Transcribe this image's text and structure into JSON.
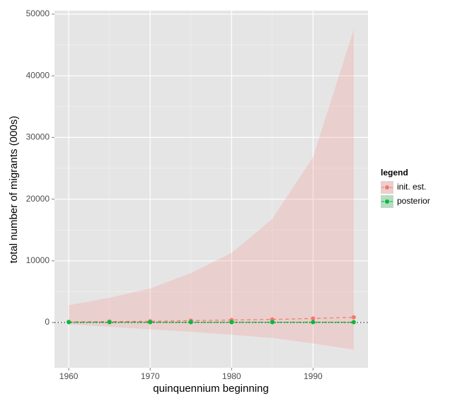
{
  "chart_data": {
    "type": "line",
    "x_label": "quinquennium beginning",
    "y_label": "total number of migrants (000s)",
    "x": [
      1960,
      1965,
      1970,
      1975,
      1980,
      1985,
      1990,
      1995
    ],
    "series": [
      {
        "name": "init. est.",
        "color": "#F8766D",
        "values": [
          100,
          150,
          200,
          300,
          400,
          500,
          650,
          850
        ],
        "lower": [
          -300,
          -700,
          -1100,
          -1500,
          -2000,
          -2500,
          -3400,
          -4400
        ],
        "upper": [
          2800,
          4000,
          5500,
          8000,
          11300,
          16800,
          26800,
          47500
        ]
      },
      {
        "name": "posterior",
        "color": "#00BA38",
        "values": [
          50,
          50,
          50,
          50,
          50,
          50,
          50,
          50
        ],
        "lower": [
          -100,
          -100,
          -100,
          -100,
          -100,
          -100,
          -100,
          -100
        ],
        "upper": [
          150,
          150,
          150,
          150,
          150,
          150,
          150,
          150
        ]
      }
    ],
    "xlim": [
      1958.25,
      1996.75
    ],
    "xticks": [
      1960,
      1970,
      1980,
      1990
    ],
    "ylim": [
      -7340,
      50570
    ],
    "yticks": [
      0,
      10000,
      20000,
      30000,
      40000,
      50000
    ],
    "hline": 0,
    "grid": true,
    "legend_title": "legend",
    "legend_position": "right"
  }
}
